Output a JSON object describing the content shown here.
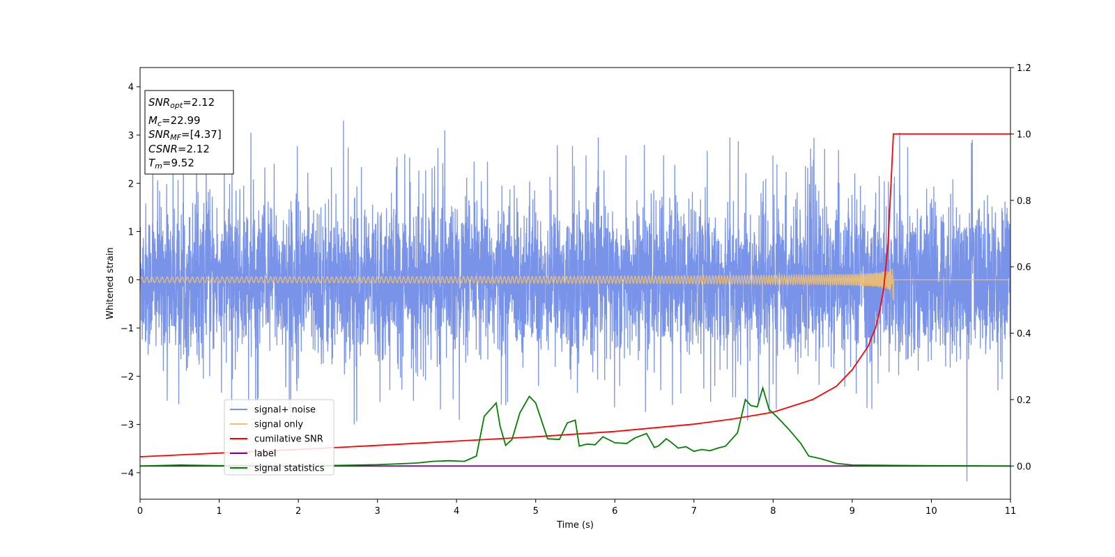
{
  "chart_data": {
    "type": "line",
    "title": "",
    "xlabel": "Time (s)",
    "ylabel": "Whitened strain",
    "y2label": "",
    "xlim": [
      0,
      11
    ],
    "ylim": [
      -4.55,
      4.4
    ],
    "y2lim": [
      -0.1,
      1.2
    ],
    "xticks": [
      0,
      1,
      2,
      3,
      4,
      5,
      6,
      7,
      8,
      9,
      10,
      11
    ],
    "yticks": [
      -4,
      -3,
      -2,
      -1,
      0,
      1,
      2,
      3,
      4
    ],
    "y2ticks": [
      "0.0",
      "0.2",
      "0.4",
      "0.6",
      "0.8",
      "1.0",
      "1.2"
    ],
    "grid": false,
    "legend_position": "lower-left",
    "annotation": {
      "snr_opt": {
        "sym": "SNR",
        "sub": "opt",
        "value": "=2.12"
      },
      "mc": {
        "sym": "M",
        "sub": "c",
        "value": "=22.99"
      },
      "snr_mf": {
        "sym": "SNR",
        "sub": "MF",
        "value": "=[4.37]"
      },
      "csnr": {
        "sym": "CSNR",
        "sub": "",
        "value": "=2.12"
      },
      "tm": {
        "sym": "T",
        "sub": "m",
        "value": "=9.52"
      }
    },
    "series": [
      {
        "name": "signal+ noise",
        "axis": "left",
        "color": "#7893e8",
        "kind": "noise",
        "x_range": [
          0,
          11
        ],
        "amplitude_range": [
          -4.2,
          3.3
        ],
        "description_values": {
          "typical_band": [
            -1.6,
            1.6
          ],
          "extreme_peaks": [
            [
              2.57,
              3.3
            ],
            [
              0.16,
              2.93
            ],
            [
              1.4,
              3.05
            ],
            [
              3.85,
              3.1
            ],
            [
              9.6,
              3.05
            ],
            [
              10.45,
              -4.18
            ]
          ]
        }
      },
      {
        "name": "signal only",
        "axis": "left",
        "color": "#f0c070",
        "kind": "chirp",
        "x_range": [
          0,
          9.52
        ],
        "peak_time": 9.52,
        "peak_amplitude": 0.45
      },
      {
        "name": "cumilative SNR",
        "axis": "right",
        "color": "#ff0000",
        "x": [
          0,
          1,
          2,
          3,
          4,
          5,
          6,
          7,
          7.5,
          8,
          8.5,
          8.8,
          9,
          9.1,
          9.2,
          9.3,
          9.35,
          9.4,
          9.45,
          9.48,
          9.5,
          9.52,
          9.6,
          10,
          11
        ],
        "y": [
          0.028,
          0.039,
          0.05,
          0.062,
          0.075,
          0.088,
          0.104,
          0.126,
          0.142,
          0.162,
          0.2,
          0.24,
          0.29,
          0.325,
          0.36,
          0.42,
          0.47,
          0.54,
          0.66,
          0.8,
          0.9,
          1.0,
          1.0,
          1.0,
          1.0
        ]
      },
      {
        "name": "label",
        "axis": "right",
        "color": "#800080",
        "x": [
          0,
          11
        ],
        "y": [
          0.0,
          0.0
        ]
      },
      {
        "name": "signal statistics",
        "axis": "right",
        "color": "#008000",
        "x": [
          0,
          0.5,
          1,
          1.5,
          2,
          2.5,
          3,
          3.3,
          3.5,
          3.7,
          3.9,
          4.1,
          4.25,
          4.35,
          4.5,
          4.55,
          4.62,
          4.7,
          4.8,
          4.92,
          5.0,
          5.15,
          5.3,
          5.4,
          5.5,
          5.55,
          5.65,
          5.75,
          5.85,
          6.0,
          6.15,
          6.25,
          6.4,
          6.5,
          6.55,
          6.65,
          6.72,
          6.8,
          6.9,
          7.0,
          7.1,
          7.2,
          7.3,
          7.4,
          7.55,
          7.65,
          7.72,
          7.8,
          7.87,
          7.95,
          8.05,
          8.2,
          8.35,
          8.45,
          8.6,
          8.8,
          9.0,
          9.5,
          10,
          11
        ],
        "y": [
          0.0,
          0.003,
          0.001,
          0.002,
          0.001,
          0.002,
          0.004,
          0.007,
          0.009,
          0.014,
          0.016,
          0.014,
          0.03,
          0.15,
          0.19,
          0.12,
          0.062,
          0.08,
          0.16,
          0.21,
          0.19,
          0.082,
          0.08,
          0.13,
          0.138,
          0.06,
          0.066,
          0.064,
          0.088,
          0.07,
          0.068,
          0.084,
          0.098,
          0.056,
          0.06,
          0.082,
          0.07,
          0.054,
          0.058,
          0.044,
          0.05,
          0.046,
          0.054,
          0.06,
          0.1,
          0.2,
          0.182,
          0.178,
          0.235,
          0.17,
          0.148,
          0.11,
          0.068,
          0.03,
          0.022,
          0.008,
          0.003,
          0.002,
          0.001,
          0.0
        ]
      }
    ]
  }
}
